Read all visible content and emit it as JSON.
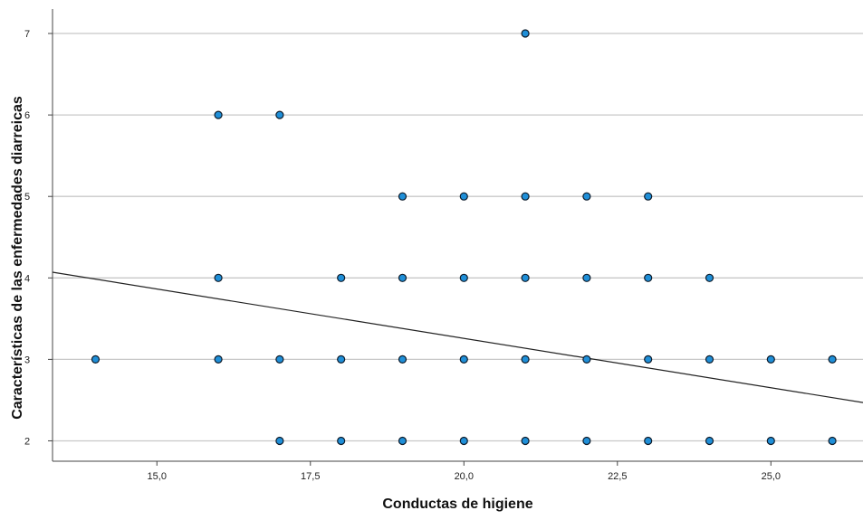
{
  "chart_data": {
    "type": "scatter",
    "title": "",
    "xlabel": "Conductas de higiene",
    "ylabel": "Características de las enfermedades diarreicas",
    "xlim": [
      13.3,
      26.5
    ],
    "ylim": [
      1.75,
      7.3
    ],
    "x_ticks": [
      15.0,
      17.5,
      20.0,
      22.5,
      25.0
    ],
    "x_tick_labels": [
      "15,0",
      "17,5",
      "20,0",
      "22,5",
      "25,0"
    ],
    "y_ticks": [
      2,
      3,
      4,
      5,
      6,
      7
    ],
    "y_tick_labels": [
      "2",
      "3",
      "4",
      "5",
      "6",
      "7"
    ],
    "grid": "horizontal",
    "legend": "none",
    "points": [
      {
        "x": 14,
        "y": 3
      },
      {
        "x": 16,
        "y": 3
      },
      {
        "x": 16,
        "y": 4
      },
      {
        "x": 16,
        "y": 6
      },
      {
        "x": 17,
        "y": 2
      },
      {
        "x": 17,
        "y": 3
      },
      {
        "x": 17,
        "y": 6
      },
      {
        "x": 18,
        "y": 2
      },
      {
        "x": 18,
        "y": 3
      },
      {
        "x": 18,
        "y": 4
      },
      {
        "x": 19,
        "y": 2
      },
      {
        "x": 19,
        "y": 3
      },
      {
        "x": 19,
        "y": 4
      },
      {
        "x": 19,
        "y": 5
      },
      {
        "x": 20,
        "y": 2
      },
      {
        "x": 20,
        "y": 3
      },
      {
        "x": 20,
        "y": 4
      },
      {
        "x": 20,
        "y": 5
      },
      {
        "x": 21,
        "y": 2
      },
      {
        "x": 21,
        "y": 3
      },
      {
        "x": 21,
        "y": 4
      },
      {
        "x": 21,
        "y": 5
      },
      {
        "x": 21,
        "y": 7
      },
      {
        "x": 22,
        "y": 2
      },
      {
        "x": 22,
        "y": 3
      },
      {
        "x": 22,
        "y": 4
      },
      {
        "x": 22,
        "y": 5
      },
      {
        "x": 23,
        "y": 2
      },
      {
        "x": 23,
        "y": 3
      },
      {
        "x": 23,
        "y": 4
      },
      {
        "x": 23,
        "y": 5
      },
      {
        "x": 24,
        "y": 2
      },
      {
        "x": 24,
        "y": 3
      },
      {
        "x": 24,
        "y": 4
      },
      {
        "x": 25,
        "y": 2
      },
      {
        "x": 25,
        "y": 3
      },
      {
        "x": 26,
        "y": 2
      },
      {
        "x": 26,
        "y": 3
      }
    ],
    "fit_line": {
      "x": [
        13.3,
        26.5
      ],
      "y": [
        4.07,
        2.47
      ]
    },
    "colors": {
      "marker_fill": "#1f8fd8",
      "marker_edge": "#0d1b2a",
      "grid": "#c8c8c8",
      "fit_line": "#222222",
      "axis": "#444444"
    }
  }
}
